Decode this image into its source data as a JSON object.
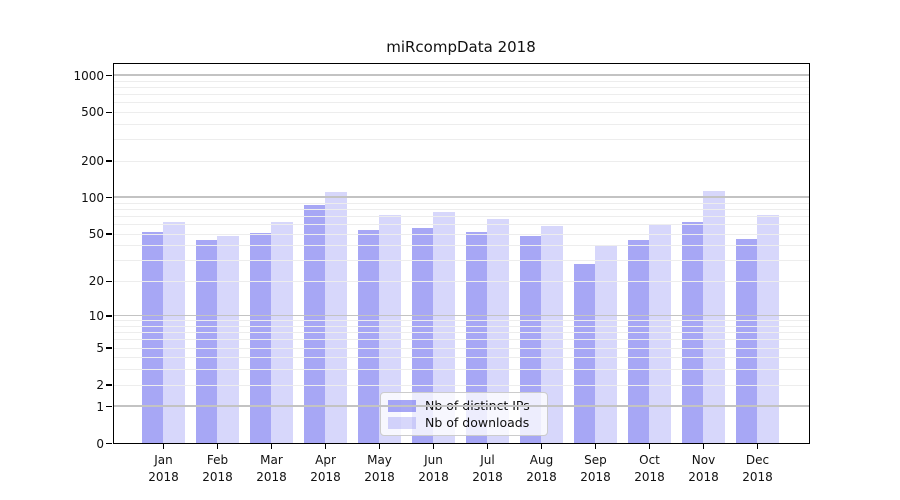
{
  "chart_data": {
    "type": "bar",
    "title": "miRcompData 2018",
    "yscale": "log1p",
    "ylim": [
      0,
      1230
    ],
    "yticks": [
      1000,
      500,
      200,
      100,
      50,
      20,
      10,
      5,
      2,
      1,
      0
    ],
    "major_grid_values": [
      1,
      10,
      100,
      1000
    ],
    "grid": true,
    "categories": [
      "Jan",
      "Feb",
      "Mar",
      "Apr",
      "May",
      "Jun",
      "Jul",
      "Aug",
      "Sep",
      "Oct",
      "Nov",
      "Dec"
    ],
    "category_year": "2018",
    "series": [
      {
        "name": "Nb of distinct IPs",
        "color": "rgba(118,118,240,0.64)",
        "rendered_color": "#a9a9f6",
        "values": [
          52,
          44,
          51,
          86,
          54,
          56,
          52,
          48,
          28,
          44,
          63,
          45
        ]
      },
      {
        "name": "Nb of downloads",
        "color": "rgba(118,118,240,0.29)",
        "rendered_color": "#d7d7fa",
        "values": [
          62,
          48,
          62,
          110,
          72,
          76,
          66,
          58,
          40,
          60,
          112,
          72
        ]
      }
    ],
    "legend": {
      "position": "lower center"
    }
  },
  "colors": {
    "major_grid": "#c3c3c3",
    "minor_grid": "#ededed",
    "axis": "#000000",
    "background": "#ffffff"
  }
}
